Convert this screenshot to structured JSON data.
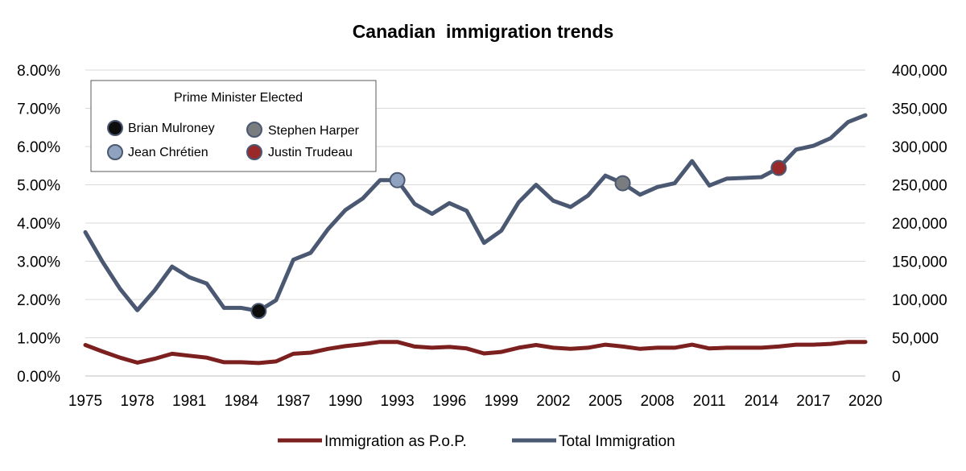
{
  "chart_data": {
    "type": "line",
    "title": "Canadian  immigration trends",
    "x": [
      1975,
      1976,
      1977,
      1978,
      1979,
      1980,
      1981,
      1982,
      1983,
      1984,
      1985,
      1986,
      1987,
      1988,
      1989,
      1990,
      1991,
      1992,
      1993,
      1994,
      1995,
      1996,
      1997,
      1998,
      1999,
      2000,
      2001,
      2002,
      2003,
      2004,
      2005,
      2006,
      2007,
      2008,
      2009,
      2010,
      2011,
      2012,
      2013,
      2014,
      2015,
      2016,
      2017,
      2018,
      2019,
      2020
    ],
    "x_tick_labels": [
      "1975",
      "1978",
      "1981",
      "1984",
      "1987",
      "1990",
      "1993",
      "1996",
      "1999",
      "2002",
      "2005",
      "2008",
      "2011",
      "2014",
      "2017",
      "2020"
    ],
    "x_tick_values": [
      1975,
      1978,
      1981,
      1984,
      1987,
      1990,
      1993,
      1996,
      1999,
      2002,
      2005,
      2008,
      2011,
      2014,
      2017,
      2020
    ],
    "xlim": [
      1975,
      2020
    ],
    "y_left": {
      "ylim": [
        0,
        0.08
      ],
      "tick_labels": [
        "0.00%",
        "1.00%",
        "2.00%",
        "3.00%",
        "4.00%",
        "5.00%",
        "6.00%",
        "7.00%",
        "8.00%"
      ]
    },
    "y_right": {
      "ylim": [
        0,
        400000
      ],
      "tick_labels": [
        "0",
        "50,000",
        "100,000",
        "150,000",
        "200,000",
        "250,000",
        "300,000",
        "350,000",
        "400,000"
      ]
    },
    "grid": true,
    "series": [
      {
        "name": "Immigration as P.o.P.",
        "axis": "left",
        "color": "#7b1f1f",
        "values": [
          0.0081,
          0.0064,
          0.0048,
          0.0035,
          0.0045,
          0.0058,
          0.0053,
          0.0048,
          0.0036,
          0.0036,
          0.0034,
          0.0038,
          0.0058,
          0.0061,
          0.0071,
          0.0078,
          0.0083,
          0.0089,
          0.0089,
          0.0077,
          0.0074,
          0.0076,
          0.0072,
          0.0059,
          0.0063,
          0.0074,
          0.0081,
          0.0074,
          0.0071,
          0.0074,
          0.0082,
          0.0077,
          0.0071,
          0.0074,
          0.0074,
          0.0082,
          0.0072,
          0.0074,
          0.0074,
          0.0074,
          0.0077,
          0.0082,
          0.0082,
          0.0084,
          0.0089,
          0.0089
        ]
      },
      {
        "name": "Total Immigration",
        "axis": "right",
        "color": "#4a5872",
        "values": [
          188000,
          149000,
          114000,
          86000,
          112000,
          143000,
          129000,
          121000,
          89000,
          89000,
          85000,
          99000,
          152000,
          161000,
          192000,
          217000,
          232000,
          256000,
          256000,
          225000,
          212000,
          226000,
          216000,
          174000,
          190000,
          227000,
          250000,
          229000,
          221000,
          236000,
          262000,
          252000,
          237000,
          247000,
          252000,
          281000,
          249000,
          258000,
          259000,
          260000,
          272000,
          296000,
          301000,
          311000,
          332000,
          341000
        ]
      }
    ],
    "markers": {
      "legend_title": "Prime Minister Elected",
      "items": [
        {
          "name": "Brian Mulroney",
          "year": 1985,
          "value": 85000,
          "color": "#0d0d0d"
        },
        {
          "name": "Stephen Harper",
          "year": 2006,
          "value": 252000,
          "color": "#7a7d80"
        },
        {
          "name": "Jean Chrétien",
          "year": 1993,
          "value": 256000,
          "color": "#8fa3c0"
        },
        {
          "name": "Justin Trudeau",
          "year": 2015,
          "value": 272000,
          "color": "#9a2a2a"
        }
      ]
    },
    "legend": [
      "Immigration as P.o.P.",
      "Total Immigration"
    ]
  }
}
